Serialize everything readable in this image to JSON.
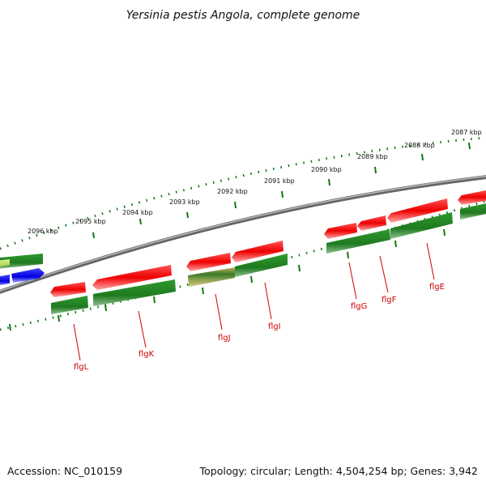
{
  "title": "Yersinia pestis Angola, complete genome",
  "accession": "Accession: NC_010159",
  "topology": "Topology: circular; Length: 4,504,254 bp; Genes: 3,942",
  "kbp_ticks": [
    "2096 kbp",
    "2095 kbp",
    "2094 kbp",
    "2093 kbp",
    "2092 kbp",
    "2091 kbp",
    "2090 kbp",
    "2089 kbp",
    "2088 kbp",
    "2087 kbp"
  ],
  "gene_labels": [
    "flgL",
    "flgK",
    "flgJ",
    "flgI",
    "flgG",
    "flgF",
    "flgE"
  ],
  "colors": {
    "cds_red": "#ee1111",
    "gene_green": "#228822",
    "other_blue": "#1111ee",
    "backbone": "#777777",
    "tick_green": "#117711",
    "label_red": "#cc0000"
  }
}
